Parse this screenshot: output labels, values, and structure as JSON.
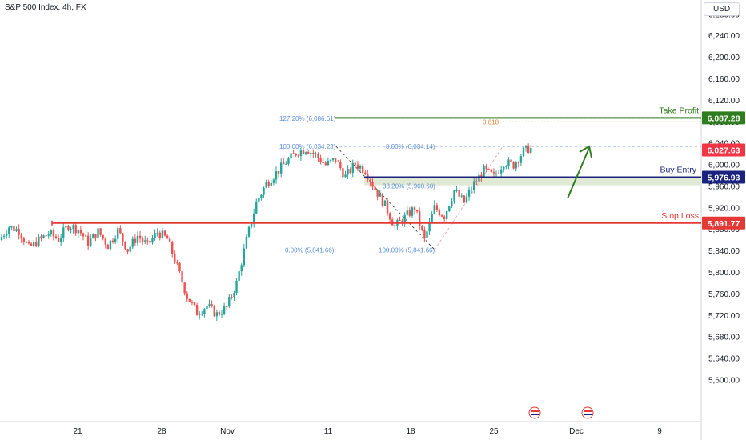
{
  "header": {
    "title": "S&P 500 Index, 4h, FX",
    "currency": "USD"
  },
  "colors": {
    "up": "#26a69a",
    "down": "#ef5350",
    "take_profit": "#2e7d1e",
    "buy_entry": "#1a237e",
    "stop_loss": "#e53935",
    "current": "#f23645",
    "fib": "#5b8fd9",
    "fib_orange": "#e08a3c",
    "zone": "#dfe9d4"
  },
  "chart_data": {
    "type": "candlestick",
    "title": "S&P 500 Index, 4h, FX",
    "ylim": [
      5580,
      6340
    ],
    "y_ticks": [
      5600,
      5640,
      5680,
      5720,
      5760,
      5800,
      5840,
      5880,
      5920,
      5960,
      6000,
      6040,
      6080,
      6120,
      6160,
      6200,
      6240,
      6280
    ],
    "y_tick_labels": [
      "5,600.00",
      "5,640.00",
      "5,680.00",
      "5,720.00",
      "5,760.00",
      "5,800.00",
      "5,840.00",
      "5,880.00",
      "5,920.00",
      "5,960.00",
      "6,000.00",
      "6,040.00",
      "6,080.00",
      "6,120.00",
      "6,160.00",
      "6,200.00",
      "6,240.00",
      "6,280.00"
    ],
    "x_labels": [
      "21",
      "28",
      "Nov",
      "11",
      "18",
      "25",
      "Dec",
      "9"
    ],
    "price_path": [
      {
        "bar": 0,
        "price": 5860
      },
      {
        "bar": 4,
        "price": 5885
      },
      {
        "bar": 8,
        "price": 5878
      },
      {
        "bar": 12,
        "price": 5845
      },
      {
        "bar": 16,
        "price": 5860
      },
      {
        "bar": 20,
        "price": 5872
      },
      {
        "bar": 24,
        "price": 5862
      },
      {
        "bar": 28,
        "price": 5888
      },
      {
        "bar": 32,
        "price": 5880
      },
      {
        "bar": 36,
        "price": 5855
      },
      {
        "bar": 40,
        "price": 5876
      },
      {
        "bar": 44,
        "price": 5850
      },
      {
        "bar": 48,
        "price": 5878
      },
      {
        "bar": 52,
        "price": 5842
      },
      {
        "bar": 56,
        "price": 5868
      },
      {
        "bar": 60,
        "price": 5850
      },
      {
        "bar": 64,
        "price": 5875
      },
      {
        "bar": 68,
        "price": 5862
      },
      {
        "bar": 72,
        "price": 5810
      },
      {
        "bar": 76,
        "price": 5755
      },
      {
        "bar": 80,
        "price": 5725
      },
      {
        "bar": 84,
        "price": 5738
      },
      {
        "bar": 88,
        "price": 5722
      },
      {
        "bar": 92,
        "price": 5735
      },
      {
        "bar": 96,
        "price": 5780
      },
      {
        "bar": 100,
        "price": 5860
      },
      {
        "bar": 104,
        "price": 5930
      },
      {
        "bar": 108,
        "price": 5965
      },
      {
        "bar": 112,
        "price": 5985
      },
      {
        "bar": 116,
        "price": 6005
      },
      {
        "bar": 120,
        "price": 6022
      },
      {
        "bar": 124,
        "price": 6030
      },
      {
        "bar": 128,
        "price": 6018
      },
      {
        "bar": 132,
        "price": 6000
      },
      {
        "bar": 136,
        "price": 6010
      },
      {
        "bar": 140,
        "price": 5978
      },
      {
        "bar": 144,
        "price": 6002
      },
      {
        "bar": 148,
        "price": 5990
      },
      {
        "bar": 152,
        "price": 5955
      },
      {
        "bar": 156,
        "price": 5925
      },
      {
        "bar": 160,
        "price": 5885
      },
      {
        "bar": 164,
        "price": 5902
      },
      {
        "bar": 168,
        "price": 5920
      },
      {
        "bar": 172,
        "price": 5860
      },
      {
        "bar": 176,
        "price": 5920
      },
      {
        "bar": 180,
        "price": 5905
      },
      {
        "bar": 184,
        "price": 5952
      },
      {
        "bar": 188,
        "price": 5930
      },
      {
        "bar": 192,
        "price": 5965
      },
      {
        "bar": 196,
        "price": 5990
      },
      {
        "bar": 200,
        "price": 5978
      },
      {
        "bar": 204,
        "price": 6005
      },
      {
        "bar": 208,
        "price": 6000
      },
      {
        "bar": 212,
        "price": 6025
      },
      {
        "bar": 214,
        "price": 6030
      }
    ],
    "levels": [
      {
        "key": "take_profit",
        "name": "Take Profit",
        "price": 6087.28,
        "label": "6,087.28"
      },
      {
        "key": "buy_entry",
        "name": "Buy Entry",
        "price": 5976.93,
        "label": "5,976.93"
      },
      {
        "key": "stop_loss",
        "name": "Stop Loss",
        "price": 5891.77,
        "label": "5,891.77"
      },
      {
        "key": "current",
        "name": "",
        "price": 6027.63,
        "label": "6,027.63"
      }
    ],
    "fib_left": [
      {
        "label": "127.20% (6,086.61)",
        "price": 6086.61
      },
      {
        "label": "100.00% (6,034.23)",
        "price": 6034.23
      },
      {
        "label": "0.00% (5,841.66)",
        "price": 5841.66
      }
    ],
    "fib_right": [
      {
        "label": "0.00% (6,034.14)",
        "price": 6034.14
      },
      {
        "label": "38.20% (5,960.60)",
        "price": 5960.6
      },
      {
        "label": "100.00% (5,841.66)",
        "price": 5841.66
      }
    ],
    "fib_618": {
      "label": "0.618",
      "price": 6080
    },
    "buy_zone": [
      5962,
      5978
    ]
  }
}
